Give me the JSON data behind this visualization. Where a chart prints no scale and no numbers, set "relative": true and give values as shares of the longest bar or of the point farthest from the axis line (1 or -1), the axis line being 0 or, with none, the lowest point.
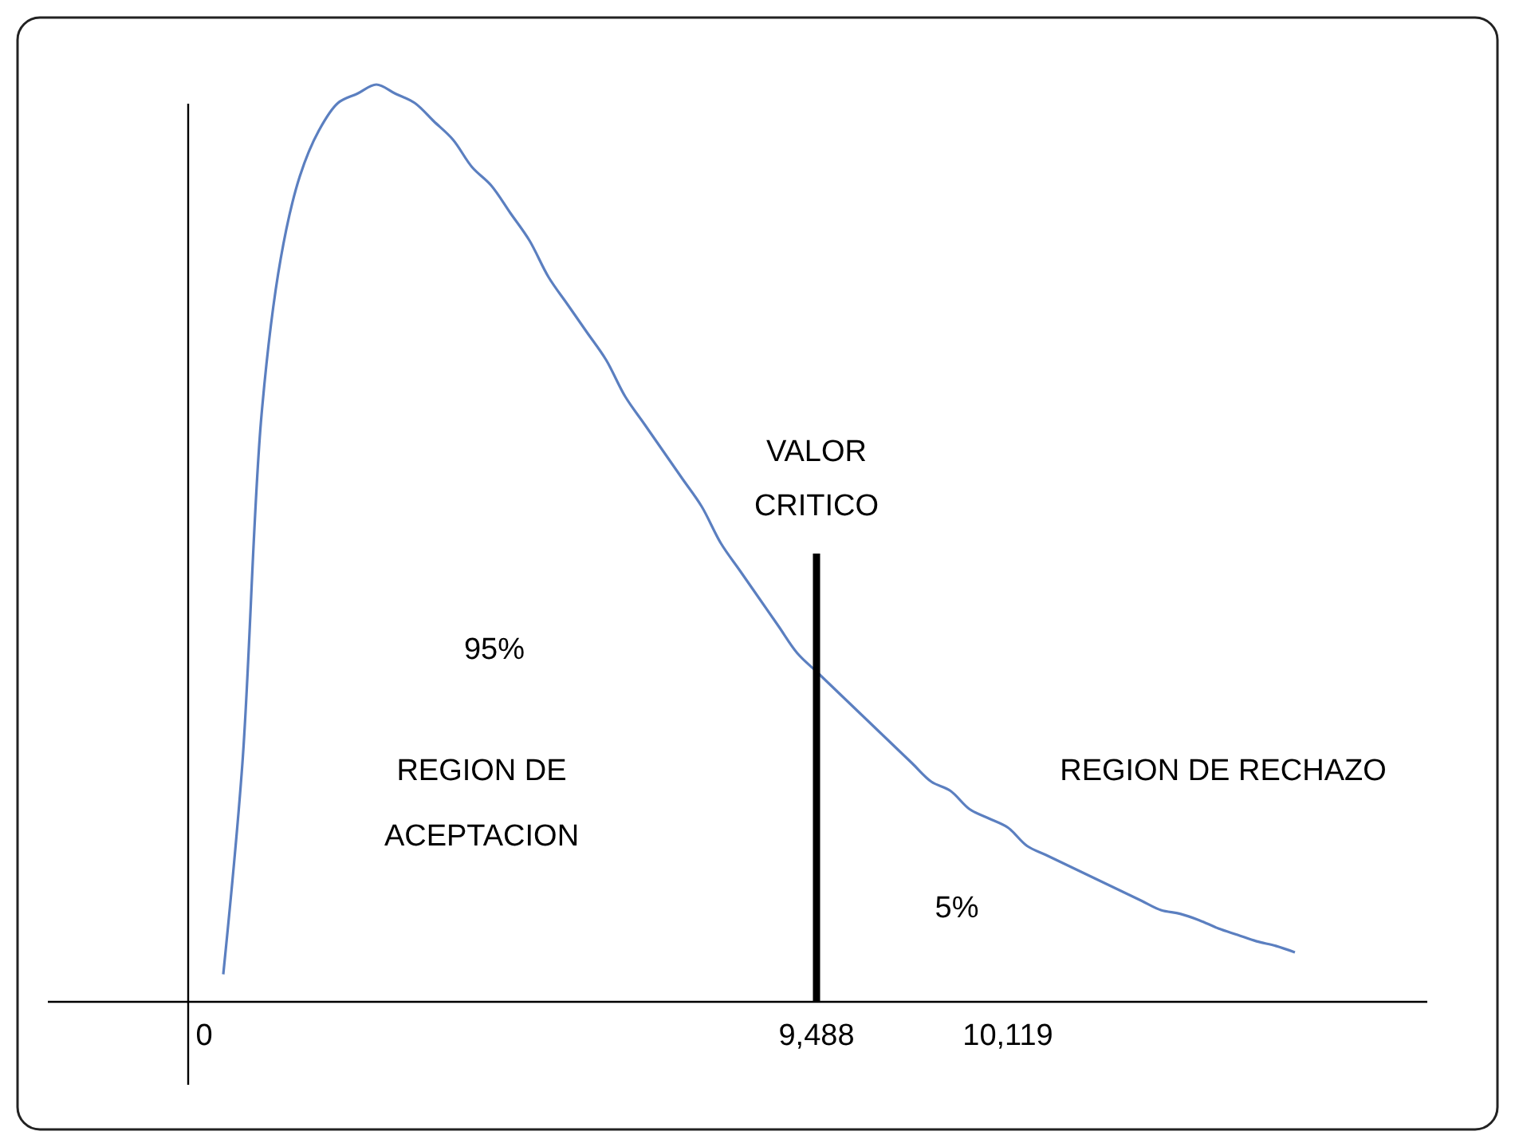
{
  "chart_data": {
    "type": "line",
    "relative": true,
    "categories": [
      "0",
      null,
      null,
      null,
      null,
      null,
      null,
      null,
      null,
      null,
      null,
      null,
      null,
      null,
      null,
      null,
      null,
      null,
      null,
      null,
      null,
      null,
      null,
      null,
      null,
      null,
      null,
      null,
      null,
      null,
      null,
      null,
      "9,488",
      null,
      null,
      null,
      null,
      null,
      null,
      null,
      null,
      null,
      "10,119",
      null,
      null,
      null,
      null,
      null,
      null,
      null,
      null,
      null,
      null,
      null,
      null,
      null,
      null,
      null
    ],
    "series": [
      {
        "color": "#5b7fc0",
        "values": [
          null,
          0.03,
          0.26,
          0.64,
          0.81,
          0.9,
          0.95,
          0.98,
          0.99,
          1.0,
          0.99,
          0.98,
          0.96,
          0.94,
          0.91,
          0.89,
          0.86,
          0.83,
          0.79,
          0.76,
          0.73,
          0.7,
          0.66,
          0.63,
          0.6,
          0.57,
          0.54,
          0.5,
          0.47,
          0.44,
          0.41,
          0.38,
          0.36,
          0.34,
          0.32,
          0.3,
          0.28,
          0.26,
          0.24,
          0.23,
          0.21,
          0.2,
          0.19,
          0.17,
          0.16,
          0.15,
          0.14,
          0.13,
          0.12,
          0.11,
          0.1,
          0.096,
          0.089,
          0.08,
          0.073,
          0.066,
          0.061,
          0.054
        ]
      }
    ],
    "ref_lines": [
      {
        "axis": "x",
        "value": "9,488",
        "label": "VALOR CRITICO",
        "color": "#000000"
      }
    ],
    "annotations": [
      "95%",
      "REGION DE ACEPTACION",
      "REGION DE RECHAZO",
      "5%"
    ],
    "grid": false,
    "marker": "none",
    "line_style": "solid"
  }
}
